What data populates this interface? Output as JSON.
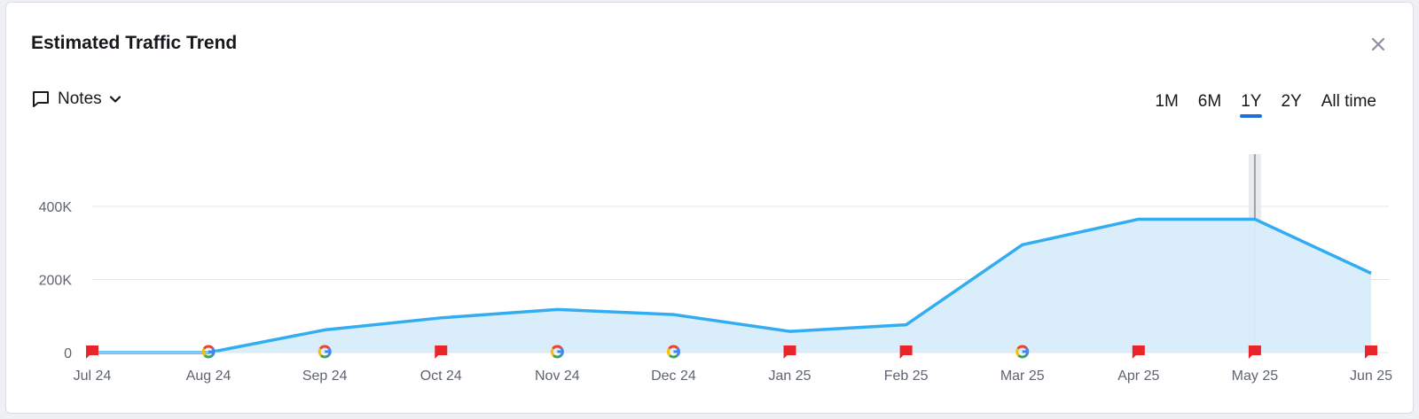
{
  "header": {
    "title": "Estimated Traffic Trend",
    "close_symbol": "×"
  },
  "notes": {
    "label": "Notes"
  },
  "ranges": [
    {
      "label": "1M",
      "active": false
    },
    {
      "label": "6M",
      "active": false
    },
    {
      "label": "1Y",
      "active": true
    },
    {
      "label": "2Y",
      "active": false
    },
    {
      "label": "All time",
      "active": false
    }
  ],
  "colors": {
    "line": "#33adf2",
    "area": "#d8ecfa",
    "flag": "#e8262a",
    "active_tab": "#1d6fdc"
  },
  "chart_data": {
    "type": "area",
    "title": "",
    "xlabel": "",
    "ylabel": "",
    "categories": [
      "Jul 24",
      "Aug 24",
      "Sep 24",
      "Oct 24",
      "Nov 24",
      "Dec 24",
      "Jan 25",
      "Feb 25",
      "Mar 25",
      "Apr 25",
      "May 25",
      "Jun 25"
    ],
    "values": [
      0,
      0,
      62000,
      95000,
      118000,
      104000,
      58000,
      76000,
      295000,
      365000,
      365000,
      217000
    ],
    "y_ticks": [
      {
        "value": 0,
        "label": "0"
      },
      {
        "value": 200000,
        "label": "200K"
      },
      {
        "value": 400000,
        "label": "400K"
      }
    ],
    "ylim": [
      0,
      400000
    ],
    "grid": true,
    "highlighted_category": "May 25",
    "markers": [
      "flag",
      "google",
      "google",
      "flag",
      "google",
      "google",
      "flag",
      "flag",
      "google",
      "flag",
      "flag",
      "flag"
    ]
  }
}
